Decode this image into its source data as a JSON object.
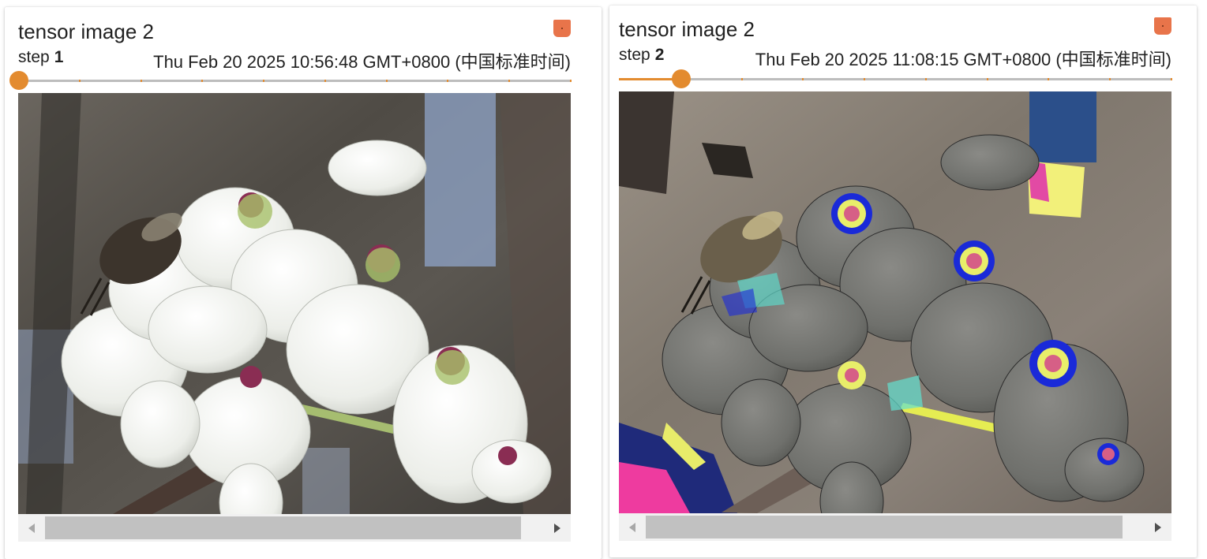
{
  "cards": [
    {
      "title": "tensor image 2",
      "step_label": "step",
      "step_value": "1",
      "timestamp": "Thu Feb 20 2025 10:56:48 GMT+0800 (中国标准时间)",
      "slider_position": 0.0,
      "image_content": "white pear blossoms with a bee, natural colors",
      "scroll_position": 0.0
    },
    {
      "title": "tensor image 2",
      "step_label": "step",
      "step_value": "2",
      "timestamp": "Thu Feb 20 2025 11:08:15 GMT+0800 (中国标准时间)",
      "slider_position": 0.111,
      "image_content": "white pear blossoms with a bee, color-processed with false-color edge artifacts",
      "scroll_position": 0.0
    }
  ],
  "colors": {
    "accent_orange": "#e38b2f",
    "pin_orange": "#e8744a",
    "track_gray": "#bdbdbd",
    "scrollbar_track": "#f1f1f1",
    "scrollbar_thumb": "#c1c1c1"
  },
  "icons": {
    "pin": "pin-icon",
    "scroll_left": "triangle-left-icon",
    "scroll_right": "triangle-right-icon"
  }
}
